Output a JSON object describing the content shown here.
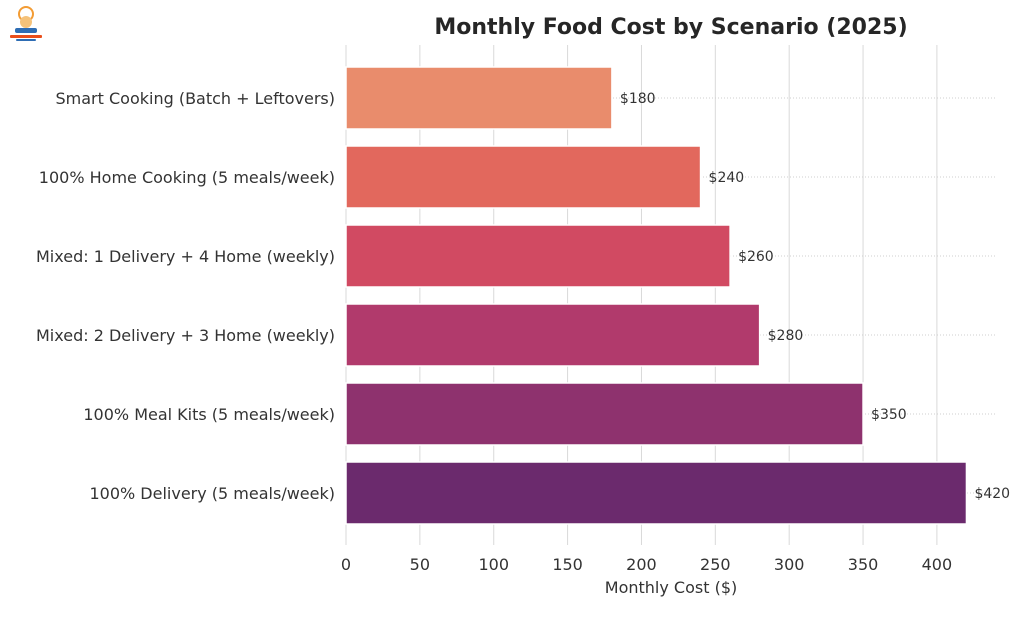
{
  "chart_data": {
    "type": "bar",
    "orientation": "horizontal",
    "title": "Monthly Food Cost by Scenario (2025)",
    "xlabel": "Monthly Cost ($)",
    "ylabel": "",
    "xlim": [
      0,
      440
    ],
    "x_ticks": [
      0,
      50,
      100,
      150,
      200,
      250,
      300,
      350,
      400
    ],
    "grid": true,
    "categories": [
      "Smart Cooking (Batch + Leftovers)",
      "100% Home Cooking (5 meals/week)",
      "Mixed: 1 Delivery + 4 Home (weekly)",
      "Mixed: 2 Delivery + 3 Home (weekly)",
      "100% Meal Kits (5 meals/week)",
      "100% Delivery (5 meals/week)"
    ],
    "values": [
      180,
      240,
      260,
      280,
      350,
      420
    ],
    "value_labels": [
      "$180",
      "$240",
      "$260",
      "$280",
      "$350",
      "$420"
    ],
    "colors": [
      "#E98C6C",
      "#E2685D",
      "#D14A62",
      "#B13A6C",
      "#8E326E",
      "#6B2A6D"
    ]
  },
  "logo": {
    "name": "site-logo",
    "colors": [
      "#F39C34",
      "#2E6DB4",
      "#E94E1B"
    ]
  }
}
